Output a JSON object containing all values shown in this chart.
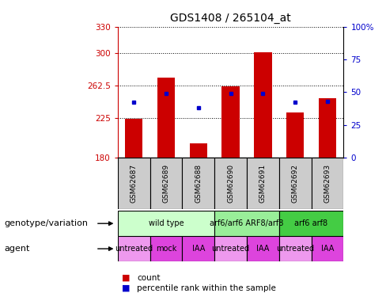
{
  "title": "GDS1408 / 265104_at",
  "samples": [
    "GSM62687",
    "GSM62689",
    "GSM62688",
    "GSM62690",
    "GSM62691",
    "GSM62692",
    "GSM62693"
  ],
  "bar_values": [
    224,
    272,
    196,
    262,
    301,
    232,
    248
  ],
  "percentile_values": [
    42,
    49,
    38,
    49,
    49,
    42,
    43
  ],
  "ymin": 180,
  "ymax": 330,
  "yticks": [
    180,
    225,
    262.5,
    300,
    330
  ],
  "ytick_labels": [
    "180",
    "225",
    "262.5",
    "300",
    "330"
  ],
  "right_yticks": [
    0,
    25,
    50,
    75,
    100
  ],
  "right_ytick_labels": [
    "0",
    "25",
    "50",
    "75",
    "100%"
  ],
  "bar_color": "#cc0000",
  "percentile_color": "#0000cc",
  "bar_width": 0.55,
  "genotype_groups": [
    {
      "label": "wild type",
      "start": 0,
      "end": 3,
      "color": "#ccffcc"
    },
    {
      "label": "arf6/arf6 ARF8/arf8",
      "start": 3,
      "end": 5,
      "color": "#99ee99"
    },
    {
      "label": "arf6 arf8",
      "start": 5,
      "end": 7,
      "color": "#44cc44"
    }
  ],
  "agent_groups": [
    {
      "label": "untreated",
      "start": 0,
      "end": 1,
      "color": "#ee99ee"
    },
    {
      "label": "mock",
      "start": 1,
      "end": 2,
      "color": "#dd44dd"
    },
    {
      "label": "IAA",
      "start": 2,
      "end": 3,
      "color": "#dd44dd"
    },
    {
      "label": "untreated",
      "start": 3,
      "end": 4,
      "color": "#ee99ee"
    },
    {
      "label": "IAA",
      "start": 4,
      "end": 5,
      "color": "#dd44dd"
    },
    {
      "label": "untreated",
      "start": 5,
      "end": 6,
      "color": "#ee99ee"
    },
    {
      "label": "IAA",
      "start": 6,
      "end": 7,
      "color": "#dd44dd"
    }
  ],
  "legend_count_color": "#cc0000",
  "legend_percentile_color": "#0000cc",
  "left_axis_color": "#cc0000",
  "right_axis_color": "#0000cc",
  "sample_box_color": "#cccccc",
  "title_fontsize": 10,
  "tick_fontsize": 7.5,
  "sample_fontsize": 6.5,
  "row_fontsize": 7,
  "label_fontsize": 8,
  "legend_fontsize": 7.5
}
